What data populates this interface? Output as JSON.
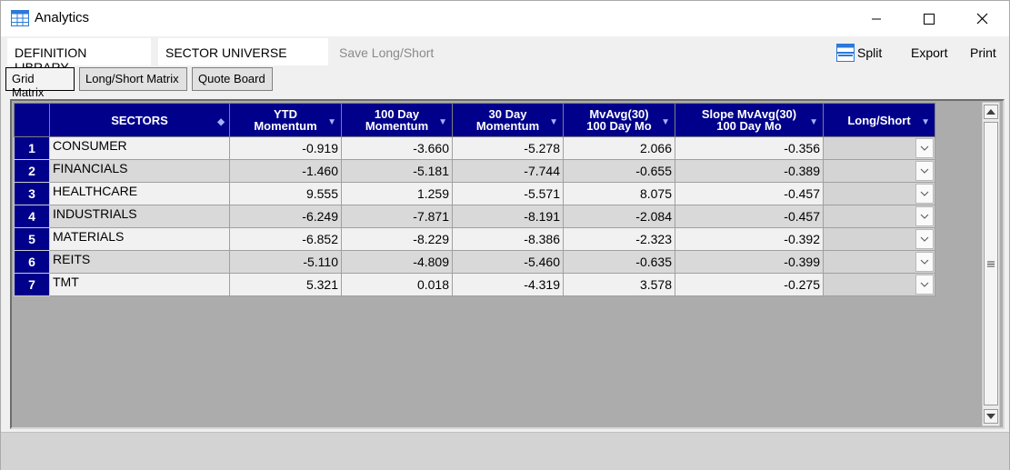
{
  "window": {
    "title": "Analytics",
    "icon": "table-grid-icon"
  },
  "toolbar": {
    "definition_library": "DEFINITION LIBRARY",
    "sector_universe": "SECTOR UNIVERSE",
    "save": "Save Long/Short",
    "split": "Split",
    "export": "Export",
    "print": "Print"
  },
  "tabs": [
    {
      "label": "Grid Matrix",
      "active": true
    },
    {
      "label": "Long/Short Matrix",
      "active": false
    },
    {
      "label": "Quote Board",
      "active": false
    }
  ],
  "grid": {
    "columns": [
      {
        "line1": "SECTORS",
        "line2": ""
      },
      {
        "line1": "YTD",
        "line2": "Momentum"
      },
      {
        "line1": "100 Day",
        "line2": "Momentum"
      },
      {
        "line1": "30 Day",
        "line2": "Momentum"
      },
      {
        "line1": "MvAvg(30)",
        "line2": "100 Day Mo"
      },
      {
        "line1": "Slope MvAvg(30)",
        "line2": "100 Day Mo"
      },
      {
        "line1": "Long/Short",
        "line2": ""
      }
    ],
    "rows": [
      {
        "n": "1",
        "sector": "CONSUMER",
        "ytd": "-0.919",
        "d100": "-3.660",
        "d30": "-5.278",
        "mvavg": "2.066",
        "slope": "-0.356",
        "ls": ""
      },
      {
        "n": "2",
        "sector": "FINANCIALS",
        "ytd": "-1.460",
        "d100": "-5.181",
        "d30": "-7.744",
        "mvavg": "-0.655",
        "slope": "-0.389",
        "ls": ""
      },
      {
        "n": "3",
        "sector": "HEALTHCARE",
        "ytd": "9.555",
        "d100": "1.259",
        "d30": "-5.571",
        "mvavg": "8.075",
        "slope": "-0.457",
        "ls": ""
      },
      {
        "n": "4",
        "sector": "INDUSTRIALS",
        "ytd": "-6.249",
        "d100": "-7.871",
        "d30": "-8.191",
        "mvavg": "-2.084",
        "slope": "-0.457",
        "ls": ""
      },
      {
        "n": "5",
        "sector": "MATERIALS",
        "ytd": "-6.852",
        "d100": "-8.229",
        "d30": "-8.386",
        "mvavg": "-2.323",
        "slope": "-0.392",
        "ls": ""
      },
      {
        "n": "6",
        "sector": "REITS",
        "ytd": "-5.110",
        "d100": "-4.809",
        "d30": "-5.460",
        "mvavg": "-0.635",
        "slope": "-0.399",
        "ls": ""
      },
      {
        "n": "7",
        "sector": "TMT",
        "ytd": "5.321",
        "d100": "0.018",
        "d30": "-4.319",
        "mvavg": "3.578",
        "slope": "-0.275",
        "ls": ""
      }
    ]
  },
  "colors": {
    "header_bg": "#00008b",
    "row_light": "#f1f1f1",
    "row_dark": "#d9d9d9",
    "grid_bg": "#acacac"
  }
}
